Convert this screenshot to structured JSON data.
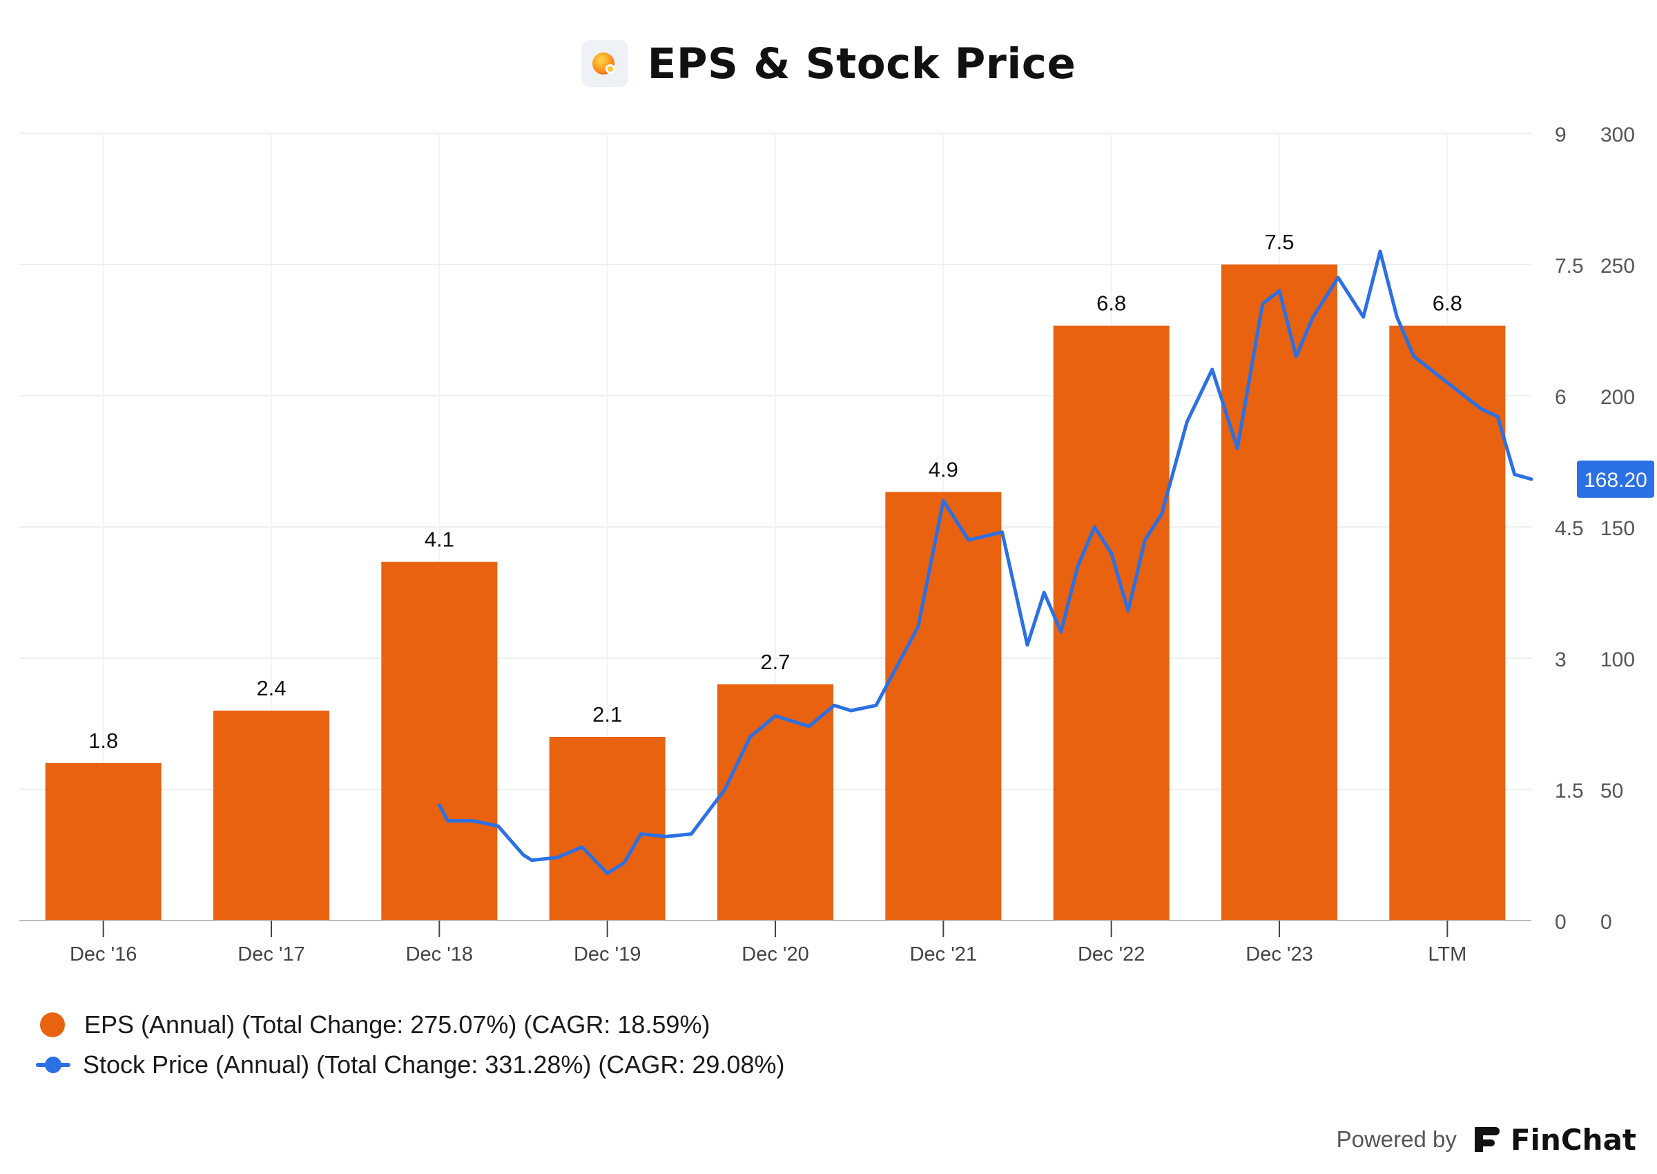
{
  "title": "EPS & Stock Price",
  "title_icon": "finchat-orb-icon",
  "colors": {
    "eps": "#e8620f",
    "price": "#2b70e4",
    "badge": "#2b70e4",
    "grid": "#efefef"
  },
  "legend": {
    "eps": "EPS (Annual) (Total Change: 275.07%) (CAGR: 18.59%)",
    "price": "Stock Price (Annual) (Total Change: 331.28%) (CAGR: 29.08%)"
  },
  "footer": {
    "powered_by": "Powered by",
    "brand": "FinChat",
    "brand_icon": "finchat-logo-icon"
  },
  "chart_data": {
    "type": "bar",
    "categories": [
      "Dec '16",
      "Dec '17",
      "Dec '18",
      "Dec '19",
      "Dec '20",
      "Dec '21",
      "Dec '22",
      "Dec '23",
      "LTM"
    ],
    "series": [
      {
        "name": "EPS (Annual)",
        "type": "bar",
        "axis": "left",
        "values": [
          1.8,
          2.4,
          4.1,
          2.1,
          2.7,
          4.9,
          6.8,
          7.5,
          6.8
        ],
        "labels": [
          "1.8",
          "2.4",
          "4.1",
          "2.1",
          "2.7",
          "4.9",
          "6.8",
          "7.5",
          "6.8"
        ]
      },
      {
        "name": "Stock Price (Annual)",
        "type": "line",
        "axis": "right",
        "x": [
          2.0,
          2.05,
          2.2,
          2.35,
          2.5,
          2.55,
          2.7,
          2.85,
          3.0,
          3.1,
          3.2,
          3.35,
          3.5,
          3.7,
          3.85,
          4.0,
          4.2,
          4.35,
          4.45,
          4.6,
          4.75,
          4.85,
          5.0,
          5.15,
          5.35,
          5.5,
          5.6,
          5.7,
          5.8,
          5.9,
          6.0,
          6.1,
          6.2,
          6.3,
          6.45,
          6.6,
          6.75,
          6.9,
          7.0,
          7.1,
          7.2,
          7.35,
          7.5,
          7.6,
          7.7,
          7.8,
          7.9,
          8.0,
          8.1,
          8.2,
          8.3,
          8.4,
          8.5
        ],
        "values": [
          44,
          38,
          38,
          36,
          25,
          23,
          24,
          28,
          18,
          22,
          33,
          32,
          33,
          50,
          70,
          78,
          74,
          82,
          80,
          82,
          100,
          112,
          160,
          145,
          148,
          105,
          125,
          110,
          135,
          150,
          140,
          118,
          145,
          155,
          190,
          210,
          180,
          235,
          240,
          215,
          230,
          245,
          230,
          255,
          230,
          215,
          210,
          205,
          200,
          195,
          192,
          170,
          168.2
        ]
      }
    ],
    "left_axis": {
      "ticks": [
        "0",
        "1.5",
        "3",
        "4.5",
        "6",
        "7.5",
        "9"
      ],
      "range": [
        0,
        9
      ]
    },
    "right_axis": {
      "ticks": [
        "0",
        "50",
        "100",
        "150",
        "200",
        "250",
        "300"
      ],
      "range": [
        0,
        300
      ]
    },
    "last_price_label": "168.20",
    "grid": true,
    "legend_position": "bottom-left"
  }
}
